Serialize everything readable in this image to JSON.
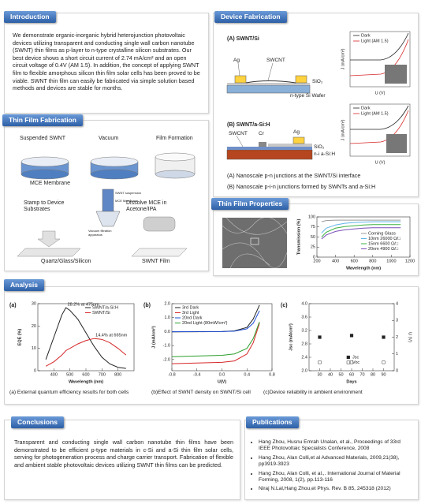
{
  "introduction": {
    "heading": "Introduction",
    "text": "We demonstrate organic-inorganic hybrid heterojunction photovoltaic devices utilizing transparent and conducting single wall carbon nanotube (SWNT) thin films as p-layer to n-type crystalline silicon substrates. Our best device shows a short circuit current of 2.74 mA/cm² and an open circuit voltage of 0.4V (AM 1.5).  In addition, the concept of applying SWNT film to flexible amorphous silicon thin film solar cells has been proved to be viable. SWNT thin film can easily be fabricated via simple solution based methods and devices are stable for months."
  },
  "device_fabrication": {
    "heading": "Device Fabrication",
    "a": {
      "title": "(A) SWNT/Si",
      "ag": "Ag",
      "swcnt": "SWCNT",
      "oxide": "SiO₂",
      "substrate": "n-type Si Wafer",
      "legend": [
        "Dark",
        "Light (AM 1.5)"
      ],
      "xlabel": "U (V)",
      "ylabel": "J (mA/cm²)",
      "caption": "(A) Nanoscale p-n junctions at the  SWNT/Si interface"
    },
    "b": {
      "title": "(B) SWNT/a-Si:H",
      "swcnt": "SWCNT",
      "cr": "Cr",
      "ag": "Ag",
      "oxide": "SiO₂",
      "substrate": "n-i a-Si:H",
      "legend": [
        "Dark",
        "Light (AM 1.5)"
      ],
      "xlabel": "U (V)",
      "ylabel": "J (mA/cm²)",
      "caption": "(B) Nanoscale p-i-n junctions formed by SWNTs and a-Si:H"
    }
  },
  "thin_film_fabrication": {
    "heading": "Thin Film Fabrication",
    "steps": [
      "Suspended SWNT",
      "Vacuum",
      "Film Formation"
    ],
    "membrane": "MCE  Membrane",
    "stamp": "Stamp to Device Substrates",
    "dissolve": "Dissolve MCE in Acetone/IPA",
    "apparatus": [
      "SWNT suspension",
      "MCE Membrane",
      "Vacuum filtration apparatus"
    ],
    "substrate": "Quartz/Glass/Silicon",
    "film": "SWNT Film"
  },
  "thin_film_properties": {
    "heading": "Thin Film  Properties",
    "chart": {
      "type": "line",
      "xlabel": "Wavelength (nm)",
      "ylabel": "Transmission (%)",
      "x": [
        250,
        300,
        400,
        500,
        600,
        700,
        800,
        900,
        1000,
        1100
      ],
      "series": [
        {
          "name": "Corning Glass",
          "color": "#9a9a9a",
          "values": [
            88,
            91,
            92,
            92,
            92,
            92,
            92,
            92,
            92,
            92
          ]
        },
        {
          "name": "10nm 26000 Ω/□",
          "color": "#5fb4e8",
          "values": [
            60,
            72,
            80,
            84,
            86,
            87,
            88,
            88,
            88,
            88
          ]
        },
        {
          "name": "15nm 6600 Ω/□",
          "color": "#3cb043",
          "values": [
            50,
            62,
            72,
            76,
            78,
            80,
            81,
            81,
            81,
            81
          ]
        },
        {
          "name": "20nm 4900 Ω/□",
          "color": "#7b4fb8",
          "values": [
            45,
            55,
            64,
            68,
            70,
            72,
            73,
            73,
            73,
            73
          ]
        }
      ],
      "xlim": [
        200,
        1200
      ],
      "xticks": [
        200,
        400,
        600,
        800,
        1000,
        1200
      ],
      "ylim": [
        0,
        100
      ],
      "yticks": [
        0,
        25,
        50,
        75,
        100
      ],
      "legend": "lower right"
    }
  },
  "analysis": {
    "heading": "Analysis",
    "panels": [
      {
        "label": "(a)",
        "caption": "(a) External quantum  efficiency results for both cells",
        "chart": {
          "type": "line",
          "xlabel": "Wavelength (nm)",
          "ylabel": "EQE (%)",
          "x": [
            350,
            400,
            450,
            475,
            500,
            550,
            600,
            650,
            700,
            750,
            800,
            850
          ],
          "series": [
            {
              "name": "SWNT/a-Si:H",
              "color": "#222222",
              "values": [
                5,
                15,
                25,
                28.2,
                27,
                23,
                17,
                11,
                6,
                3,
                1.5,
                1
              ]
            },
            {
              "name": "SWNT/Si",
              "color": "#d62728",
              "values": [
                2,
                4,
                7,
                9,
                10,
                12,
                13.5,
                14.4,
                14,
                12.5,
                10,
                7
              ]
            }
          ],
          "annotations": [
            "28.2% at 475nm",
            "14.4% at 665nm"
          ],
          "xlim": [
            300,
            900
          ],
          "xticks": [
            400,
            500,
            600,
            700,
            800
          ],
          "ylim": [
            0,
            30
          ],
          "yticks": [
            0,
            10,
            20,
            30
          ],
          "legend": "upper right"
        }
      },
      {
        "label": "(b)",
        "caption": "(b)Effect of SWNT density on SWNT/Si cell",
        "chart": {
          "type": "line",
          "xlabel": "U(V)",
          "ylabel": "J (mA/cm²)",
          "x": [
            -0.8,
            -0.4,
            0,
            0.2,
            0.4,
            0.5,
            0.6
          ],
          "series": [
            {
              "name": "3rd Dark",
              "color": "#222222",
              "values": [
                -0.02,
                -0.01,
                0,
                0.05,
                0.3,
                0.9,
                1.9
              ]
            },
            {
              "name": "3rd Light",
              "color": "#d62728",
              "values": [
                -2.3,
                -2.25,
                -2.2,
                -2.1,
                -1.6,
                -0.8,
                0.6
              ]
            },
            {
              "name": "20nd Dark",
              "color": "#1f4fd6",
              "values": [
                -0.01,
                0,
                0,
                0.03,
                0.2,
                0.6,
                1.5
              ]
            },
            {
              "name": "20nd Light (80mW/cm²)",
              "color": "#2ca02c",
              "values": [
                -1.8,
                -1.75,
                -1.7,
                -1.6,
                -1.2,
                -0.5,
                0.7
              ]
            }
          ],
          "xlim": [
            -0.8,
            0.8
          ],
          "xticks": [
            -0.8,
            -0.4,
            {
              "value": 0,
              "label": "0.0"
            },
            0.4,
            0.8
          ],
          "ylim": [
            -2.8,
            2.0
          ],
          "yticks": [
            {
              "value": -2,
              "label": "-2.0"
            },
            {
              "value": -1,
              "label": "-1.0"
            },
            {
              "value": 0,
              "label": "0.0"
            },
            {
              "value": 1,
              "label": "1.0"
            },
            {
              "value": 2,
              "label": "2.0"
            }
          ],
          "legend": "upper left"
        }
      },
      {
        "label": "(c)",
        "caption": "(c)Device reliability in ambient environment",
        "chart": {
          "type": "scatter",
          "xlabel": "Days",
          "ylabel": "Jsc (mA/cm²)",
          "y2label": "U (V)",
          "x": [
            30,
            60,
            90
          ],
          "series": [
            {
              "name": "Jsc",
              "color": "#222222",
              "values": [
                3.0,
                3.05,
                3.0
              ]
            },
            {
              "name": "Voc",
              "color": "#555555",
              "values": [
                0.5,
                0.5,
                0.5
              ],
              "axis": "y2"
            }
          ],
          "xlim": [
            20,
            100
          ],
          "xticks": [
            30,
            40,
            50,
            60,
            70,
            80,
            90
          ],
          "ylim": [
            2.0,
            4.0
          ],
          "yticks": [
            {
              "value": 2,
              "label": "2.0"
            },
            2.4,
            2.8,
            3.2,
            3.6,
            {
              "value": 4,
              "label": "4.0"
            }
          ],
          "y2lim": [
            0,
            4
          ],
          "y2ticks": [
            0,
            1,
            2,
            3,
            4
          ],
          "legend": "lower right"
        }
      }
    ]
  },
  "conclusions": {
    "heading": "Conclusions",
    "text": "Transparent and conducting single wall carbon nanotube thin films have been demonstrated to be efficient p-type materials in c-Si and a-Si thin film solar cells, serving for photogeneration process and charge carrier transport. Fabrication of flexible and ambient stable photovoltaic devices utilizing SWNT thin films can be predicted."
  },
  "publications": {
    "heading": "Publications",
    "items": [
      "Hang Zhou, Husnu Emrah Unalan, et al., Proceedings of 33rd IEEE Photovoltaic Specialists Conference, 2008",
      "Hang Zhou, Alan Colli,et al Advanced Materials, 2009,21(38), pp3919-3923",
      "Hang Zhou, Alan Colli, et al.,. International Journal of Material Forming, 2008, 1(2), pp.113-116",
      "Niraj N.Lal,Hang Zhou,et Phys. Rev. B 85, 245318 (2012)"
    ]
  }
}
